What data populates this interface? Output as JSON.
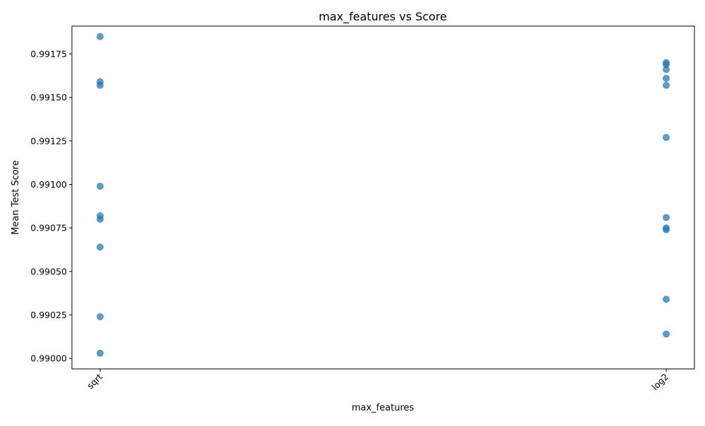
{
  "chart_data": {
    "type": "scatter",
    "title": "max_features vs Score",
    "xlabel": "max_features",
    "ylabel": "Mean Test Score",
    "categories": [
      "sqrt",
      "log2"
    ],
    "ylim": [
      0.98994,
      0.99191
    ],
    "yticks": [
      "0.99000",
      "0.99025",
      "0.99050",
      "0.99075",
      "0.99100",
      "0.99125",
      "0.99150",
      "0.99175"
    ],
    "grid": false,
    "marker_color": "#1f77b4",
    "points": [
      {
        "x": "sqrt",
        "y": 0.99185
      },
      {
        "x": "sqrt",
        "y": 0.99159
      },
      {
        "x": "sqrt",
        "y": 0.99157
      },
      {
        "x": "sqrt",
        "y": 0.99099
      },
      {
        "x": "sqrt",
        "y": 0.99082
      },
      {
        "x": "sqrt",
        "y": 0.9908
      },
      {
        "x": "sqrt",
        "y": 0.99064
      },
      {
        "x": "sqrt",
        "y": 0.99024
      },
      {
        "x": "sqrt",
        "y": 0.99003
      },
      {
        "x": "log2",
        "y": 0.9917
      },
      {
        "x": "log2",
        "y": 0.99169
      },
      {
        "x": "log2",
        "y": 0.99166
      },
      {
        "x": "log2",
        "y": 0.99161
      },
      {
        "x": "log2",
        "y": 0.99157
      },
      {
        "x": "log2",
        "y": 0.99127
      },
      {
        "x": "log2",
        "y": 0.99081
      },
      {
        "x": "log2",
        "y": 0.99075
      },
      {
        "x": "log2",
        "y": 0.99074
      },
      {
        "x": "log2",
        "y": 0.99034
      },
      {
        "x": "log2",
        "y": 0.99014
      }
    ]
  }
}
